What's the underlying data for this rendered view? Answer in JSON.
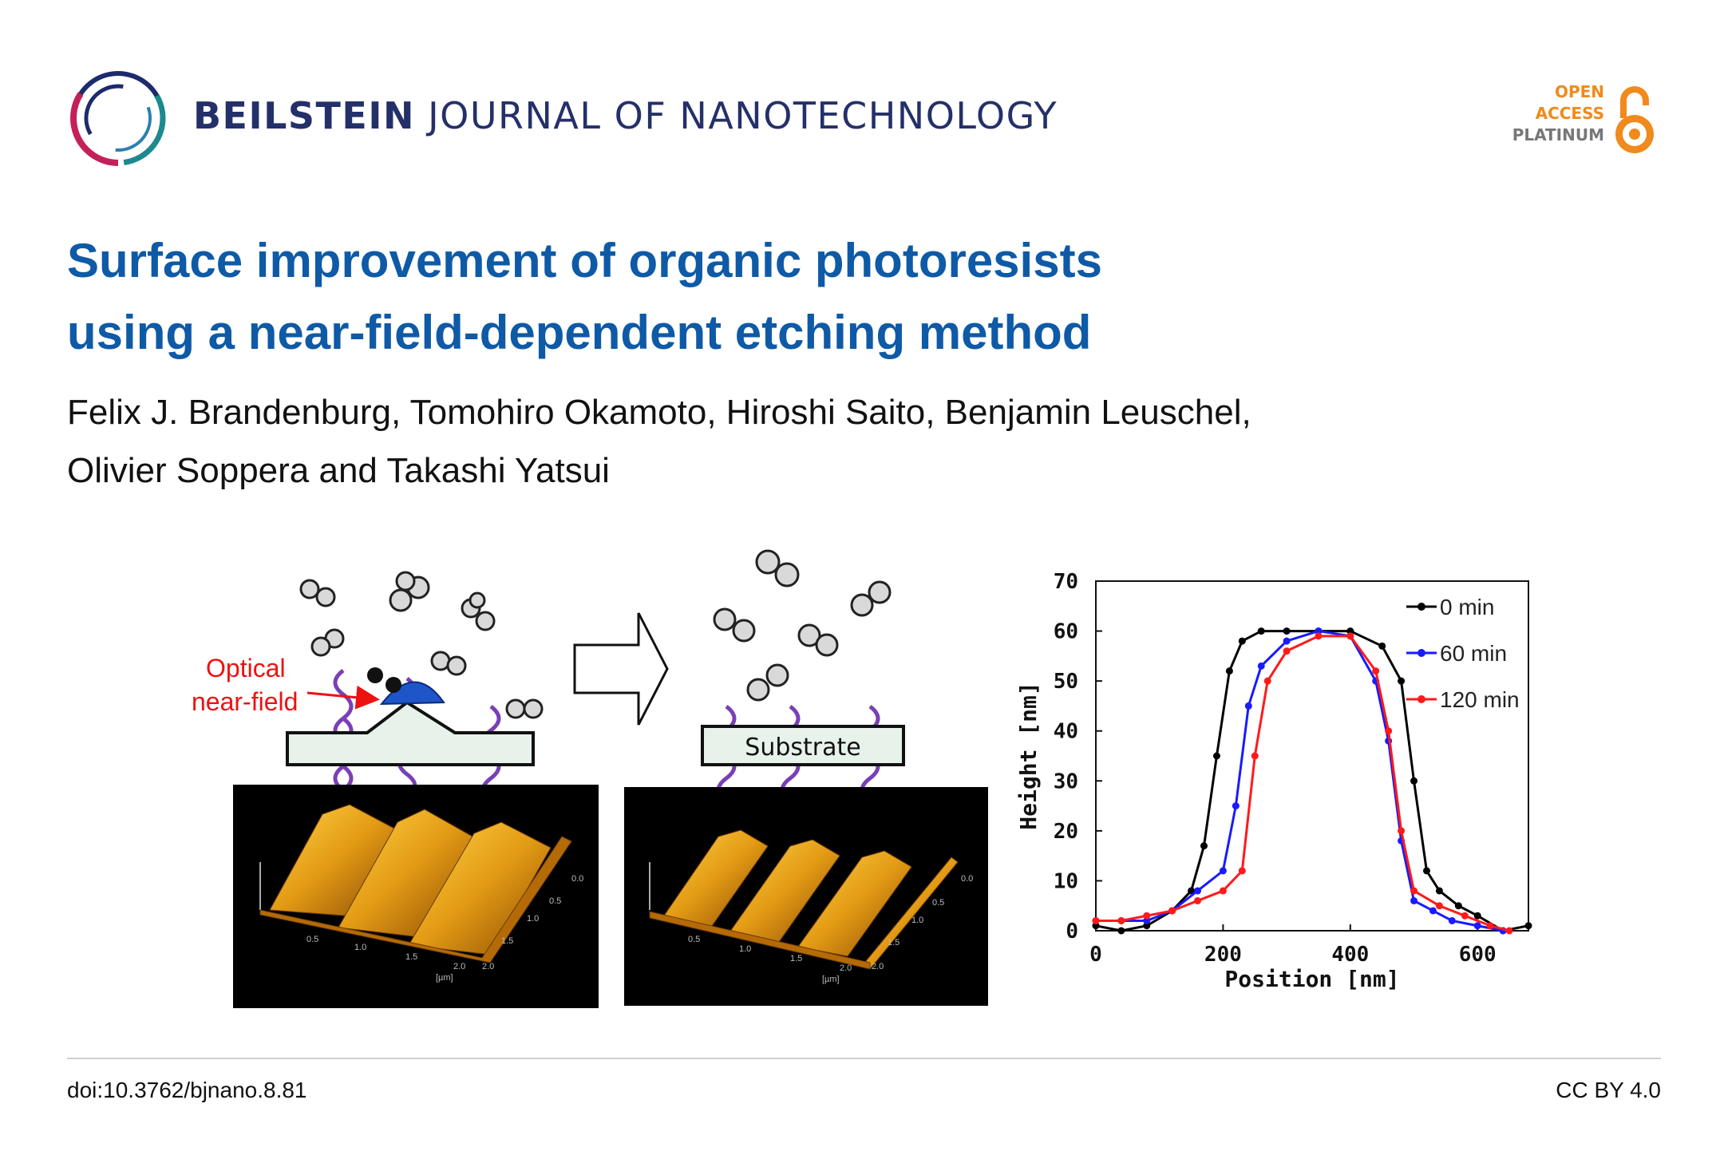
{
  "header": {
    "journal_brand": "BEILSTEIN",
    "journal_rest": "JOURNAL OF NANOTECHNOLOGY",
    "badge": {
      "line1": "OPEN",
      "line2": "ACCESS",
      "line3": "PLATINUM"
    }
  },
  "article": {
    "title_line1": "Surface improvement of organic photoresists",
    "title_line2": "using a near-field-dependent etching method",
    "authors_line1": "Felix J. Brandenburg, Tomohiro Okamoto, Hiroshi Saito, Benjamin Leuschel,",
    "authors_line2": "Olivier Soppera and Takashi Yatsui"
  },
  "figure": {
    "label_optical": "Optical",
    "label_nearfield": "near-field",
    "label_substrate": "Substrate",
    "afm_left_ticks": [
      "0.5",
      "1.0",
      "1.5",
      "2.0",
      "[µm]",
      "0.5",
      "1.0",
      "1.5",
      "2.0",
      "0.0"
    ],
    "afm_right_ticks": [
      "0.5",
      "1.0",
      "1.5",
      "2.0",
      "[µm]",
      "0.5",
      "1.0",
      "1.5",
      "2.0",
      "0.0"
    ]
  },
  "chart_data": {
    "type": "line",
    "xlabel": "Position [nm]",
    "ylabel": "Height [nm]",
    "xlim": [
      0,
      680
    ],
    "ylim": [
      0,
      70
    ],
    "xticks": [
      0,
      200,
      400,
      600
    ],
    "yticks": [
      0,
      10,
      20,
      30,
      40,
      50,
      60,
      70
    ],
    "legend": "top-right",
    "series": [
      {
        "name": "0 min",
        "color": "#000000",
        "x": [
          0,
          40,
          80,
          120,
          150,
          170,
          190,
          210,
          230,
          260,
          300,
          350,
          400,
          450,
          480,
          500,
          520,
          540,
          570,
          600,
          640,
          680
        ],
        "y": [
          1,
          0,
          1,
          4,
          8,
          17,
          35,
          52,
          58,
          60,
          60,
          60,
          60,
          57,
          50,
          30,
          12,
          8,
          5,
          3,
          0,
          1
        ]
      },
      {
        "name": "60 min",
        "color": "#1a1aff",
        "x": [
          0,
          40,
          80,
          120,
          160,
          200,
          220,
          240,
          260,
          300,
          350,
          400,
          440,
          460,
          480,
          500,
          530,
          560,
          600,
          640
        ],
        "y": [
          2,
          2,
          2,
          4,
          8,
          12,
          25,
          45,
          53,
          58,
          60,
          59,
          50,
          38,
          18,
          6,
          4,
          2,
          1,
          0
        ]
      },
      {
        "name": "120 min",
        "color": "#ff1a1a",
        "x": [
          0,
          40,
          80,
          120,
          160,
          200,
          230,
          250,
          270,
          300,
          350,
          400,
          440,
          460,
          480,
          500,
          540,
          580,
          620,
          650
        ],
        "y": [
          2,
          2,
          3,
          4,
          6,
          8,
          12,
          35,
          50,
          56,
          59,
          59,
          52,
          40,
          20,
          8,
          5,
          3,
          1,
          0
        ]
      }
    ]
  },
  "footer": {
    "doi": "doi:10.3762/bjnano.8.81",
    "license": "CC BY 4.0"
  }
}
